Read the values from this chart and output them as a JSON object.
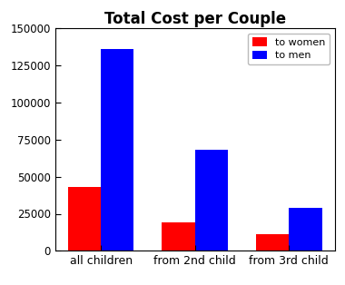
{
  "title": "Total Cost per Couple",
  "categories": [
    "all children",
    "from 2nd child",
    "from 3rd child"
  ],
  "to_women": [
    43000,
    19000,
    11000
  ],
  "to_men": [
    136000,
    68000,
    29000
  ],
  "bar_color_women": "#ff0000",
  "bar_color_men": "#0000ff",
  "ylim": [
    0,
    150000
  ],
  "yticks": [
    0,
    25000,
    50000,
    75000,
    100000,
    125000,
    150000
  ],
  "legend_labels": [
    "to women",
    "to men"
  ],
  "legend_loc": "upper right",
  "bar_width": 0.35,
  "title_fontsize": 12,
  "tick_fontsize": 8.5,
  "xtick_fontsize": 9
}
